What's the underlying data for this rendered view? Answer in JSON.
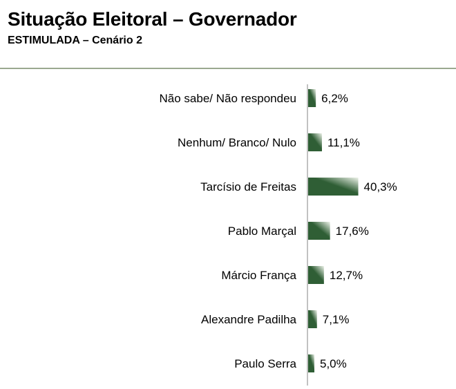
{
  "header": {
    "title": "Situação Eleitoral – Governador",
    "subtitle": "ESTIMULADA – Cenário 2"
  },
  "colors": {
    "bar_dark": "#2f5e35",
    "bar_light": "#eef3ea",
    "axis": "#9a9a9a",
    "rule": "#9aa88f"
  },
  "chart_data": {
    "type": "bar",
    "orientation": "horizontal",
    "categories": [
      "Não sabe/ Não respondeu",
      "Nenhum/ Branco/ Nulo",
      "Tarcísio de Freitas",
      "Pablo Marçal",
      "Márcio França",
      "Alexandre Padilha",
      "Paulo Serra"
    ],
    "values": [
      6.2,
      11.1,
      40.3,
      17.6,
      12.7,
      7.1,
      5.0
    ],
    "data_labels": [
      "6,2%",
      "11,1%",
      "40,3%",
      "17,6%",
      "12,7%",
      "7,1%",
      "5,0%"
    ],
    "unit": "%",
    "grid": false,
    "legend": "none"
  }
}
